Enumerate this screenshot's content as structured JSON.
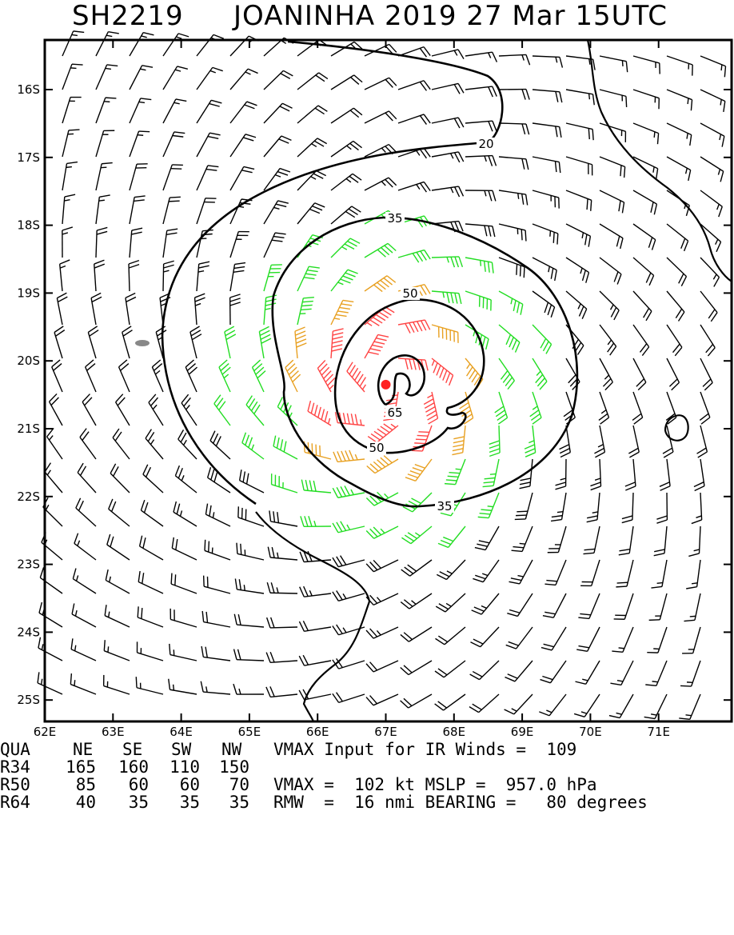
{
  "title": {
    "storm_id": "SH2219",
    "storm_text": "JOANINHA 2019 27 Mar 15UTC"
  },
  "axes": {
    "lat_labels": [
      "16S",
      "17S",
      "18S",
      "19S",
      "20S",
      "21S",
      "22S",
      "23S",
      "24S",
      "25S"
    ],
    "lon_labels": [
      "62E",
      "63E",
      "64E",
      "65E",
      "66E",
      "67E",
      "68E",
      "69E",
      "70E",
      "71E"
    ]
  },
  "center": {
    "lat": -20.35,
    "lon": 67.0,
    "marker_color": "#ff2020"
  },
  "contour_labels": [
    "20",
    "35",
    "50",
    "65",
    "50",
    "35"
  ],
  "colors": {
    "barb_light": "#000000",
    "barb_34": "#22dd22",
    "barb_50": "#e8a020",
    "barb_64": "#ff4444",
    "contour": "#000000",
    "coast": "#000000"
  },
  "radii_table": {
    "header": {
      "qua": "QUA",
      "ne": "NE",
      "se": "SE",
      "sw": "SW",
      "nw": "NW"
    },
    "rows": [
      {
        "label": "R34",
        "ne": "165",
        "se": "160",
        "sw": "110",
        "nw": "150"
      },
      {
        "label": "R50",
        "ne": "85",
        "se": "60",
        "sw": "60",
        "nw": "70"
      },
      {
        "label": "R64",
        "ne": "40",
        "se": "35",
        "sw": "35",
        "nw": "35"
      }
    ]
  },
  "info": {
    "line1": "VMAX Input for IR Winds =  109",
    "line2": "VMAX =  102 kt MSLP =  957.0 hPa",
    "line3": "RMW  =  16 nmi BEARING =   80 degrees"
  }
}
